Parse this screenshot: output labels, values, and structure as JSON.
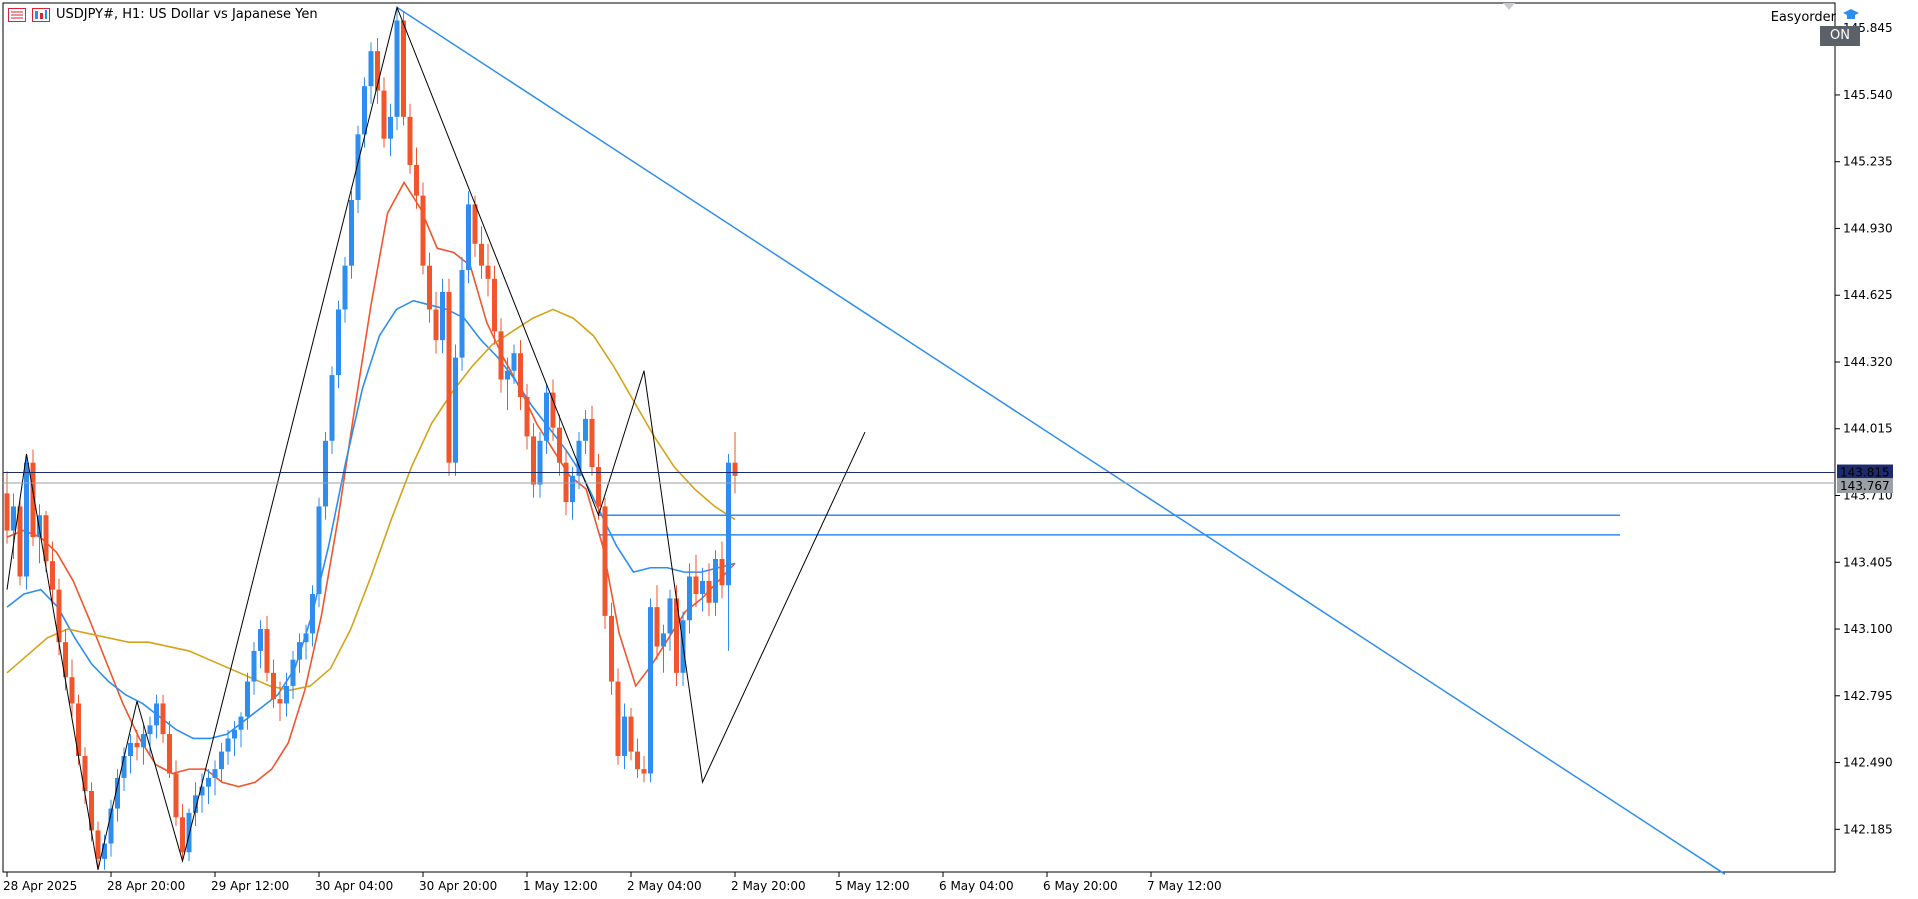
{
  "header": {
    "title": "USDJPY#, H1:  US Dollar vs Japanese Yen"
  },
  "expert": {
    "name": "Easyorder",
    "status": "ON"
  },
  "colors": {
    "bull": "#2e8ef0",
    "bear": "#f2552c",
    "ma_fast": "#f2552c",
    "ma_mid": "#2e8ef0",
    "ma_slow": "#d6a21a",
    "zigzag": "#000000",
    "trendline": "#2e8ef0",
    "bid_line": "#1c2a6e",
    "ask_line": "#9aa0a6",
    "axis": "#000000"
  },
  "chart_data": {
    "type": "candlestick",
    "symbol": "USDJPY#",
    "timeframe": "H1",
    "y_axis": {
      "ticks": [
        "145.845",
        "145.540",
        "145.235",
        "144.930",
        "144.625",
        "144.320",
        "144.015",
        "143.710",
        "143.405",
        "143.100",
        "142.795",
        "142.490",
        "142.185"
      ],
      "ylim": [
        141.99,
        145.96
      ],
      "position": "right"
    },
    "x_axis": {
      "ticks": [
        "28 Apr 2025",
        "28 Apr 20:00",
        "29 Apr 12:00",
        "30 Apr 04:00",
        "30 Apr 20:00",
        "1 May 12:00",
        "2 May 04:00",
        "2 May 20:00",
        "5 May 12:00",
        "6 May 04:00",
        "6 May 20:00",
        "7 May 12:00"
      ],
      "tick_candle_index": [
        0,
        16,
        32,
        48,
        64,
        80,
        96,
        112,
        128,
        144,
        160,
        176
      ],
      "candle_count_visible": 230
    },
    "current_prices": {
      "bid": "143.815",
      "ask": "143.767"
    },
    "ohlc": [
      [
        143.72,
        143.82,
        143.49,
        143.55
      ],
      [
        143.55,
        143.72,
        143.42,
        143.66
      ],
      [
        143.66,
        143.7,
        143.3,
        143.34
      ],
      [
        143.34,
        143.9,
        143.28,
        143.86
      ],
      [
        143.86,
        143.92,
        143.48,
        143.52
      ],
      [
        143.52,
        143.67,
        143.4,
        143.62
      ],
      [
        143.62,
        143.64,
        143.36,
        143.41
      ],
      [
        143.41,
        143.5,
        143.21,
        143.28
      ],
      [
        143.28,
        143.33,
        142.98,
        143.04
      ],
      [
        143.04,
        143.1,
        142.82,
        142.88
      ],
      [
        142.88,
        142.96,
        142.7,
        142.76
      ],
      [
        142.76,
        142.8,
        142.48,
        142.52
      ],
      [
        142.52,
        142.56,
        142.3,
        142.36
      ],
      [
        142.36,
        142.4,
        142.13,
        142.18
      ],
      [
        142.18,
        142.22,
        142.0,
        142.05
      ],
      [
        142.05,
        142.16,
        142.0,
        142.12
      ],
      [
        142.12,
        142.32,
        142.06,
        142.28
      ],
      [
        142.28,
        142.46,
        142.22,
        142.42
      ],
      [
        142.42,
        142.56,
        142.36,
        142.52
      ],
      [
        142.52,
        142.62,
        142.44,
        142.58
      ],
      [
        142.58,
        142.64,
        142.5,
        142.56
      ],
      [
        142.56,
        142.66,
        142.48,
        142.62
      ],
      [
        142.62,
        142.7,
        142.52,
        142.66
      ],
      [
        142.66,
        142.8,
        142.6,
        142.76
      ],
      [
        142.76,
        142.8,
        142.58,
        142.62
      ],
      [
        142.62,
        142.68,
        142.42,
        142.44
      ],
      [
        142.44,
        142.5,
        142.2,
        142.24
      ],
      [
        142.24,
        142.3,
        142.04,
        142.08
      ],
      [
        142.08,
        142.28,
        142.04,
        142.26
      ],
      [
        142.26,
        142.4,
        142.2,
        142.34
      ],
      [
        142.34,
        142.44,
        142.26,
        142.38
      ],
      [
        142.38,
        142.46,
        142.3,
        142.42
      ],
      [
        142.42,
        142.5,
        142.34,
        142.46
      ],
      [
        142.46,
        142.58,
        142.4,
        142.54
      ],
      [
        142.54,
        142.64,
        142.48,
        142.6
      ],
      [
        142.6,
        142.68,
        142.52,
        142.64
      ],
      [
        142.64,
        142.72,
        142.56,
        142.7
      ],
      [
        142.7,
        142.9,
        142.64,
        142.86
      ],
      [
        142.86,
        143.04,
        142.8,
        143.0
      ],
      [
        143.0,
        143.14,
        142.92,
        143.1
      ],
      [
        143.1,
        143.16,
        142.86,
        142.9
      ],
      [
        142.9,
        142.96,
        142.74,
        142.78
      ],
      [
        142.78,
        142.86,
        142.68,
        142.76
      ],
      [
        142.76,
        142.9,
        142.7,
        142.84
      ],
      [
        142.84,
        143.0,
        142.78,
        142.96
      ],
      [
        142.96,
        143.08,
        142.9,
        143.04
      ],
      [
        143.04,
        143.12,
        142.96,
        143.08
      ],
      [
        143.08,
        143.3,
        143.02,
        143.26
      ],
      [
        143.26,
        143.7,
        143.2,
        143.66
      ],
      [
        143.66,
        144.0,
        143.6,
        143.96
      ],
      [
        143.96,
        144.3,
        143.9,
        144.26
      ],
      [
        144.26,
        144.6,
        144.2,
        144.56
      ],
      [
        144.56,
        144.8,
        144.5,
        144.76
      ],
      [
        144.76,
        145.1,
        144.7,
        145.06
      ],
      [
        145.06,
        145.4,
        145.0,
        145.36
      ],
      [
        145.36,
        145.62,
        145.3,
        145.58
      ],
      [
        145.58,
        145.78,
        145.5,
        145.74
      ],
      [
        145.74,
        145.8,
        145.5,
        145.56
      ],
      [
        145.56,
        145.62,
        145.3,
        145.34
      ],
      [
        145.34,
        145.5,
        145.26,
        145.44
      ],
      [
        145.44,
        145.94,
        145.38,
        145.88
      ],
      [
        145.88,
        145.92,
        145.4,
        145.44
      ],
      [
        145.44,
        145.5,
        145.18,
        145.22
      ],
      [
        145.22,
        145.3,
        145.02,
        145.08
      ],
      [
        145.08,
        145.14,
        144.72,
        144.76
      ],
      [
        144.76,
        144.82,
        144.5,
        144.56
      ],
      [
        144.56,
        144.64,
        144.36,
        144.42
      ],
      [
        144.42,
        144.7,
        144.36,
        144.64
      ],
      [
        144.64,
        144.7,
        143.8,
        143.86
      ],
      [
        143.86,
        144.4,
        143.8,
        144.34
      ],
      [
        144.34,
        144.8,
        144.28,
        144.74
      ],
      [
        144.74,
        145.1,
        144.68,
        145.04
      ],
      [
        145.04,
        145.08,
        144.8,
        144.86
      ],
      [
        144.86,
        144.94,
        144.7,
        144.76
      ],
      [
        144.76,
        144.86,
        144.62,
        144.7
      ],
      [
        144.7,
        144.76,
        144.4,
        144.46
      ],
      [
        144.46,
        144.52,
        144.18,
        144.24
      ],
      [
        144.24,
        144.34,
        144.1,
        144.28
      ],
      [
        144.28,
        144.4,
        144.22,
        144.36
      ],
      [
        144.36,
        144.42,
        144.1,
        144.16
      ],
      [
        144.16,
        144.22,
        143.92,
        143.98
      ],
      [
        143.98,
        144.04,
        143.7,
        143.76
      ],
      [
        143.76,
        144.0,
        143.7,
        143.96
      ],
      [
        143.96,
        144.22,
        143.9,
        144.18
      ],
      [
        144.18,
        144.24,
        143.96,
        144.02
      ],
      [
        144.02,
        144.08,
        143.8,
        143.86
      ],
      [
        143.86,
        143.92,
        143.62,
        143.68
      ],
      [
        143.68,
        143.84,
        143.6,
        143.8
      ],
      [
        143.8,
        144.0,
        143.74,
        143.96
      ],
      [
        143.96,
        144.1,
        143.9,
        144.06
      ],
      [
        144.06,
        144.12,
        143.8,
        143.84
      ],
      [
        143.84,
        143.9,
        143.6,
        143.66
      ],
      [
        143.66,
        143.7,
        143.1,
        143.16
      ],
      [
        143.16,
        143.22,
        142.8,
        142.86
      ],
      [
        142.86,
        142.92,
        142.48,
        142.52
      ],
      [
        142.52,
        142.76,
        142.46,
        142.7
      ],
      [
        142.7,
        142.74,
        142.5,
        142.54
      ],
      [
        142.54,
        142.6,
        142.42,
        142.46
      ],
      [
        142.46,
        142.52,
        142.4,
        142.44
      ],
      [
        142.44,
        143.24,
        142.4,
        143.2
      ],
      [
        143.2,
        143.3,
        142.96,
        143.02
      ],
      [
        143.02,
        143.12,
        142.9,
        143.08
      ],
      [
        143.08,
        143.28,
        143.0,
        143.24
      ],
      [
        143.24,
        143.3,
        142.84,
        142.9
      ],
      [
        142.9,
        143.18,
        142.84,
        143.14
      ],
      [
        143.14,
        143.4,
        143.08,
        143.34
      ],
      [
        143.34,
        143.44,
        143.2,
        143.26
      ],
      [
        143.26,
        143.38,
        143.18,
        143.32
      ],
      [
        143.32,
        143.4,
        143.16,
        143.22
      ],
      [
        143.22,
        143.46,
        143.16,
        143.42
      ],
      [
        143.42,
        143.5,
        143.24,
        143.3
      ],
      [
        143.3,
        143.9,
        143.0,
        143.86
      ],
      [
        143.86,
        144.0,
        143.72,
        143.8
      ]
    ],
    "moving_averages": [
      {
        "label": "fast",
        "color": "#f2552c",
        "values": [
          143.52,
          143.55,
          143.52,
          143.45,
          143.32,
          143.14,
          142.95,
          142.76,
          142.6,
          142.48,
          142.44,
          142.46,
          142.46,
          142.4,
          142.38,
          142.4,
          142.46,
          142.58,
          142.82,
          143.16,
          143.6,
          144.1,
          144.58,
          145.0,
          145.14,
          145.02,
          144.84,
          144.82,
          144.76,
          144.5,
          144.34,
          144.2,
          144.04,
          143.92,
          143.8,
          143.74,
          143.48,
          143.08,
          142.84,
          142.94,
          143.06,
          143.18,
          143.24,
          143.32,
          143.4
        ]
      },
      {
        "label": "mid",
        "color": "#2e8ef0",
        "values": [
          143.2,
          143.26,
          143.28,
          143.2,
          143.06,
          142.94,
          142.86,
          142.8,
          142.76,
          142.7,
          142.64,
          142.6,
          142.6,
          142.62,
          142.68,
          142.74,
          142.8,
          142.92,
          143.16,
          143.48,
          143.86,
          144.2,
          144.44,
          144.56,
          144.6,
          144.58,
          144.56,
          144.52,
          144.42,
          144.34,
          144.24,
          144.12,
          144.02,
          143.92,
          143.8,
          143.64,
          143.48,
          143.36,
          143.38,
          143.38,
          143.36,
          143.36,
          143.38,
          143.4
        ]
      },
      {
        "label": "slow",
        "color": "#d6a21a",
        "values": [
          142.9,
          142.98,
          143.06,
          143.1,
          143.08,
          143.06,
          143.04,
          143.04,
          143.02,
          143.0,
          142.96,
          142.92,
          142.88,
          142.84,
          142.82,
          142.84,
          142.92,
          143.1,
          143.34,
          143.6,
          143.84,
          144.04,
          144.18,
          144.3,
          144.4,
          144.46,
          144.52,
          144.56,
          144.52,
          144.44,
          144.3,
          144.14,
          143.98,
          143.84,
          143.74,
          143.66,
          143.6
        ]
      }
    ],
    "zigzag": [
      [
        0,
        143.28
      ],
      [
        3,
        143.9
      ],
      [
        14,
        142.0
      ],
      [
        20,
        142.77
      ],
      [
        27,
        142.04
      ],
      [
        60,
        145.94
      ],
      [
        91,
        143.62
      ],
      [
        98,
        144.28
      ],
      [
        107,
        142.4
      ],
      [
        132,
        144.0
      ]
    ],
    "horizontal_levels": [
      143.62,
      143.53
    ],
    "trendline": {
      "from": [
        60,
        145.94
      ],
      "to": [
        220,
        141.98
      ]
    }
  }
}
